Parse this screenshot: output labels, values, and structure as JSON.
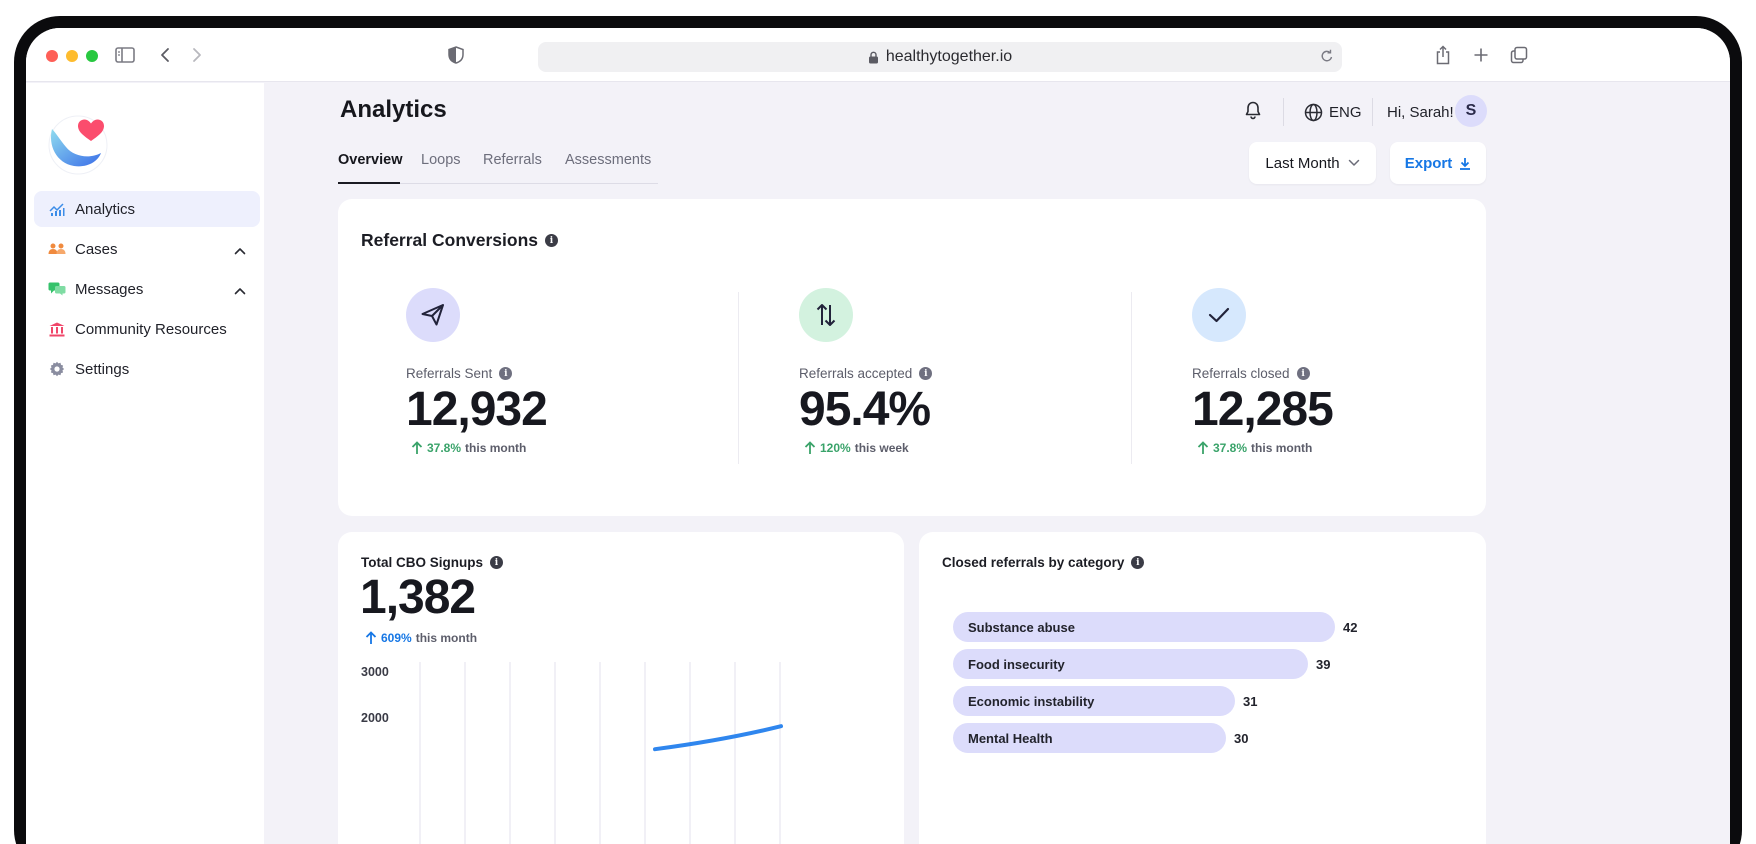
{
  "browser": {
    "url": "healthytogether.io"
  },
  "sidebar": {
    "items": [
      {
        "label": "Analytics",
        "icon": "chart-icon",
        "active": true
      },
      {
        "label": "Cases",
        "icon": "people-icon",
        "expandable": true
      },
      {
        "label": "Messages",
        "icon": "chat-icon",
        "expandable": true
      },
      {
        "label": "Community Resources",
        "icon": "bank-icon"
      },
      {
        "label": "Settings",
        "icon": "gear-icon"
      }
    ]
  },
  "header": {
    "title": "Analytics",
    "language": "ENG",
    "greeting": "Hi, Sarah!",
    "avatar_initial": "S"
  },
  "tabs": [
    "Overview",
    "Loops",
    "Referrals",
    "Assessments"
  ],
  "controls": {
    "period": "Last Month",
    "export": "Export"
  },
  "referral_conversions": {
    "title": "Referral Conversions",
    "metrics": [
      {
        "label": "Referrals Sent",
        "value": "12,932",
        "delta": "37.8%",
        "delta_suffix": "this month",
        "icon": "send-icon",
        "circle_color": "#dcdcfb"
      },
      {
        "label": "Referrals accepted",
        "value": "95.4%",
        "delta": "120%",
        "delta_suffix": "this week",
        "icon": "swap-arrows-icon",
        "circle_color": "#d3f2df"
      },
      {
        "label": "Referrals closed",
        "value": "12,285",
        "delta": "37.8%",
        "delta_suffix": "this month",
        "icon": "check-icon",
        "circle_color": "#d6e8fd"
      }
    ]
  },
  "cbo_signups": {
    "title": "Total CBO Signups",
    "value": "1,382",
    "delta": "609%",
    "delta_suffix": "this month",
    "accent": "#1677e5",
    "y_ticks": [
      "3000",
      "2000"
    ]
  },
  "closed_by_category": {
    "title": "Closed referrals by category",
    "bar_color": "#dcdcfb"
  },
  "chart_data": [
    {
      "type": "line",
      "title": "Total CBO Signups",
      "ylim": [
        0,
        3000
      ],
      "y_ticks": [
        3000,
        2000
      ],
      "series": [
        {
          "values": [
            1300,
            1500,
            1800
          ]
        }
      ],
      "grid": "vertical"
    },
    {
      "type": "bar",
      "title": "Closed referrals by category",
      "orientation": "horizontal",
      "categories": [
        "Substance abuse",
        "Food insecurity",
        "Economic instability",
        "Mental Health"
      ],
      "values": [
        42,
        39,
        31,
        30
      ]
    }
  ]
}
